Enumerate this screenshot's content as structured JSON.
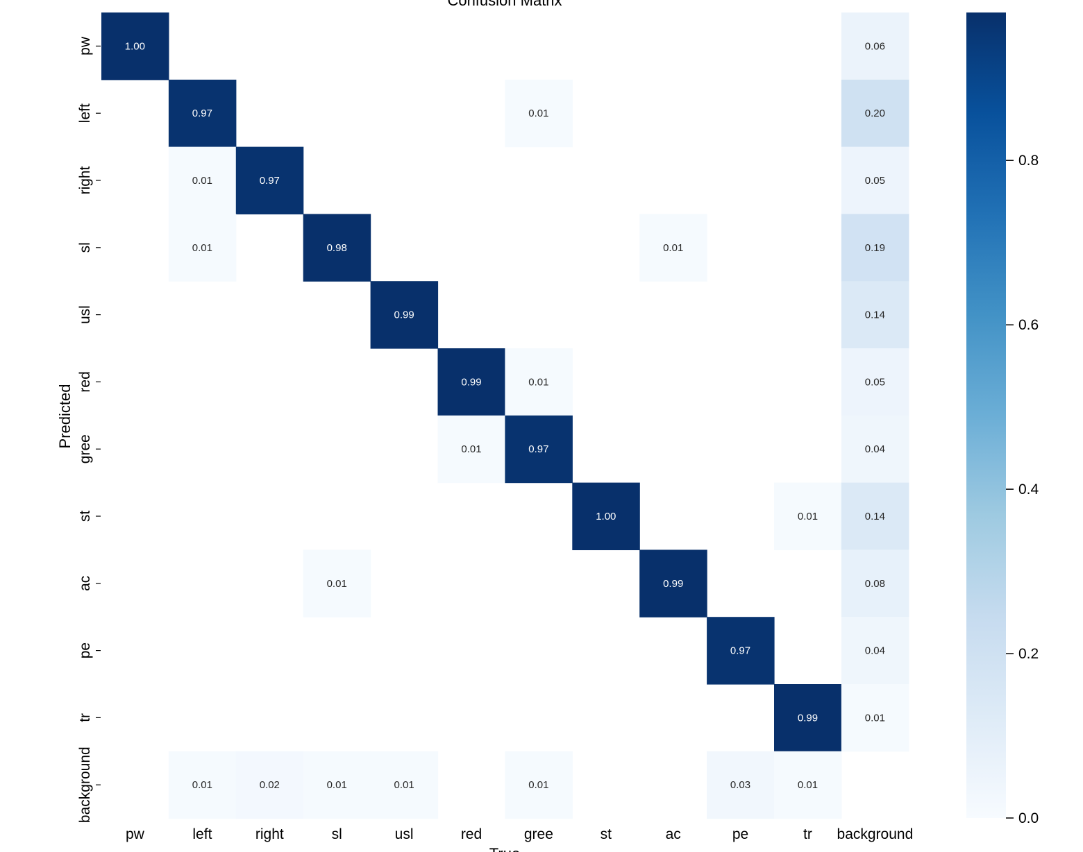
{
  "chart_data": {
    "type": "heatmap",
    "title": "Confusion Matrix",
    "xlabel": "True",
    "ylabel": "Predicted",
    "x_categories": [
      "pw",
      "left",
      "right",
      "sl",
      "usl",
      "red",
      "gree",
      "st",
      "ac",
      "pe",
      "tr",
      "background"
    ],
    "y_categories": [
      "pw",
      "left",
      "right",
      "sl",
      "usl",
      "red",
      "gree",
      "st",
      "ac",
      "pe",
      "tr",
      "background"
    ],
    "values": [
      [
        1.0,
        null,
        null,
        null,
        null,
        null,
        null,
        null,
        null,
        null,
        null,
        0.06
      ],
      [
        null,
        0.97,
        null,
        null,
        null,
        null,
        0.01,
        null,
        null,
        null,
        null,
        0.2
      ],
      [
        null,
        0.01,
        0.97,
        null,
        null,
        null,
        null,
        null,
        null,
        null,
        null,
        0.05
      ],
      [
        null,
        0.01,
        null,
        0.98,
        null,
        null,
        null,
        null,
        0.01,
        null,
        null,
        0.19
      ],
      [
        null,
        null,
        null,
        null,
        0.99,
        null,
        null,
        null,
        null,
        null,
        null,
        0.14
      ],
      [
        null,
        null,
        null,
        null,
        null,
        0.99,
        0.01,
        null,
        null,
        null,
        null,
        0.05
      ],
      [
        null,
        null,
        null,
        null,
        null,
        0.01,
        0.97,
        null,
        null,
        null,
        null,
        0.04
      ],
      [
        null,
        null,
        null,
        null,
        null,
        null,
        null,
        1.0,
        null,
        null,
        0.01,
        0.14
      ],
      [
        null,
        null,
        null,
        0.01,
        null,
        null,
        null,
        null,
        0.99,
        null,
        null,
        0.08
      ],
      [
        null,
        null,
        null,
        null,
        null,
        null,
        null,
        null,
        null,
        0.97,
        null,
        0.04
      ],
      [
        null,
        null,
        null,
        null,
        null,
        null,
        null,
        null,
        null,
        null,
        0.99,
        0.01
      ],
      [
        null,
        0.01,
        0.02,
        0.01,
        0.01,
        null,
        0.01,
        null,
        null,
        0.03,
        0.01,
        null
      ]
    ],
    "colormap": "Blues",
    "vmin": 0.0,
    "vmax": 0.98,
    "colorbar_ticks": [
      0.0,
      0.2,
      0.4,
      0.6,
      0.8
    ],
    "colorbar_tick_labels": [
      "0.0",
      "0.2",
      "0.4",
      "0.6",
      "0.8"
    ],
    "value_format": "2 decimals"
  }
}
